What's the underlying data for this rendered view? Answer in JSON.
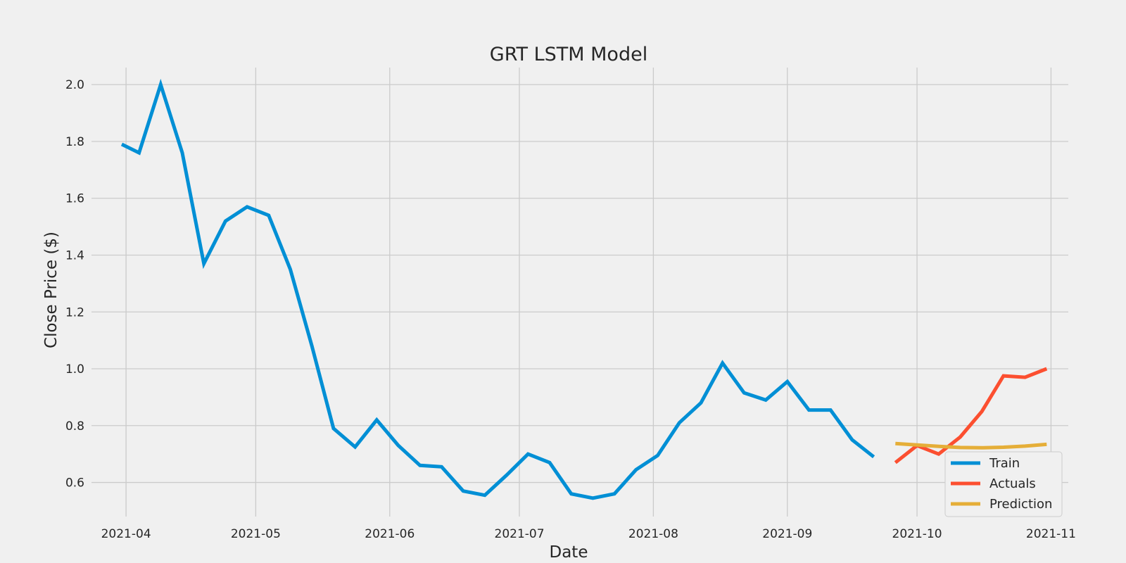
{
  "chart_data": {
    "type": "line",
    "title": "GRT LSTM Model",
    "xlabel": "Date",
    "ylabel": "Close Price ($)",
    "xlim": [
      "2021-03-24",
      "2021-11-05"
    ],
    "ylim": [
      0.48,
      2.06
    ],
    "x_ticks": [
      "2021-04-01",
      "2021-05-01",
      "2021-06-01",
      "2021-07-01",
      "2021-08-01",
      "2021-09-01",
      "2021-10-01",
      "2021-11-01"
    ],
    "x_tick_labels": [
      "2021-04",
      "2021-05",
      "2021-06",
      "2021-07",
      "2021-08",
      "2021-09",
      "2021-10",
      "2021-11"
    ],
    "y_ticks": [
      0.6,
      0.8,
      1.0,
      1.2,
      1.4,
      1.6,
      1.8,
      2.0
    ],
    "y_tick_labels": [
      "0.6",
      "0.8",
      "1.0",
      "1.2",
      "1.4",
      "1.6",
      "1.8",
      "2.0"
    ],
    "grid": true,
    "legend_position": "bottom-right",
    "series": [
      {
        "name": "Train",
        "color": "#008fd5",
        "points": [
          [
            "2021-03-31",
            1.79
          ],
          [
            "2021-04-04",
            1.76
          ],
          [
            "2021-04-09",
            2.0
          ],
          [
            "2021-04-14",
            1.76
          ],
          [
            "2021-04-19",
            1.37
          ],
          [
            "2021-04-24",
            1.52
          ],
          [
            "2021-04-29",
            1.57
          ],
          [
            "2021-05-04",
            1.54
          ],
          [
            "2021-05-09",
            1.35
          ],
          [
            "2021-05-14",
            1.08
          ],
          [
            "2021-05-19",
            0.79
          ],
          [
            "2021-05-24",
            0.725
          ],
          [
            "2021-05-29",
            0.82
          ],
          [
            "2021-06-03",
            0.73
          ],
          [
            "2021-06-08",
            0.66
          ],
          [
            "2021-06-13",
            0.655
          ],
          [
            "2021-06-18",
            0.57
          ],
          [
            "2021-06-23",
            0.555
          ],
          [
            "2021-06-28",
            0.625
          ],
          [
            "2021-07-03",
            0.7
          ],
          [
            "2021-07-08",
            0.67
          ],
          [
            "2021-07-13",
            0.56
          ],
          [
            "2021-07-18",
            0.545
          ],
          [
            "2021-07-23",
            0.56
          ],
          [
            "2021-07-28",
            0.645
          ],
          [
            "2021-08-02",
            0.695
          ],
          [
            "2021-08-07",
            0.81
          ],
          [
            "2021-08-12",
            0.88
          ],
          [
            "2021-08-17",
            1.02
          ],
          [
            "2021-08-22",
            0.915
          ],
          [
            "2021-08-27",
            0.89
          ],
          [
            "2021-09-01",
            0.955
          ],
          [
            "2021-09-06",
            0.855
          ],
          [
            "2021-09-11",
            0.855
          ],
          [
            "2021-09-16",
            0.75
          ],
          [
            "2021-09-21",
            0.69
          ]
        ]
      },
      {
        "name": "Actuals",
        "color": "#fc4f30",
        "points": [
          [
            "2021-09-26",
            0.67
          ],
          [
            "2021-10-01",
            0.73
          ],
          [
            "2021-10-06",
            0.7
          ],
          [
            "2021-10-11",
            0.76
          ],
          [
            "2021-10-16",
            0.85
          ],
          [
            "2021-10-21",
            0.975
          ],
          [
            "2021-10-26",
            0.97
          ],
          [
            "2021-10-31",
            1.0
          ]
        ]
      },
      {
        "name": "Prediction",
        "color": "#e5ae38",
        "points": [
          [
            "2021-09-26",
            0.737
          ],
          [
            "2021-10-01",
            0.732
          ],
          [
            "2021-10-06",
            0.727
          ],
          [
            "2021-10-11",
            0.723
          ],
          [
            "2021-10-16",
            0.722
          ],
          [
            "2021-10-21",
            0.724
          ],
          [
            "2021-10-26",
            0.728
          ],
          [
            "2021-10-31",
            0.734
          ]
        ]
      }
    ]
  }
}
